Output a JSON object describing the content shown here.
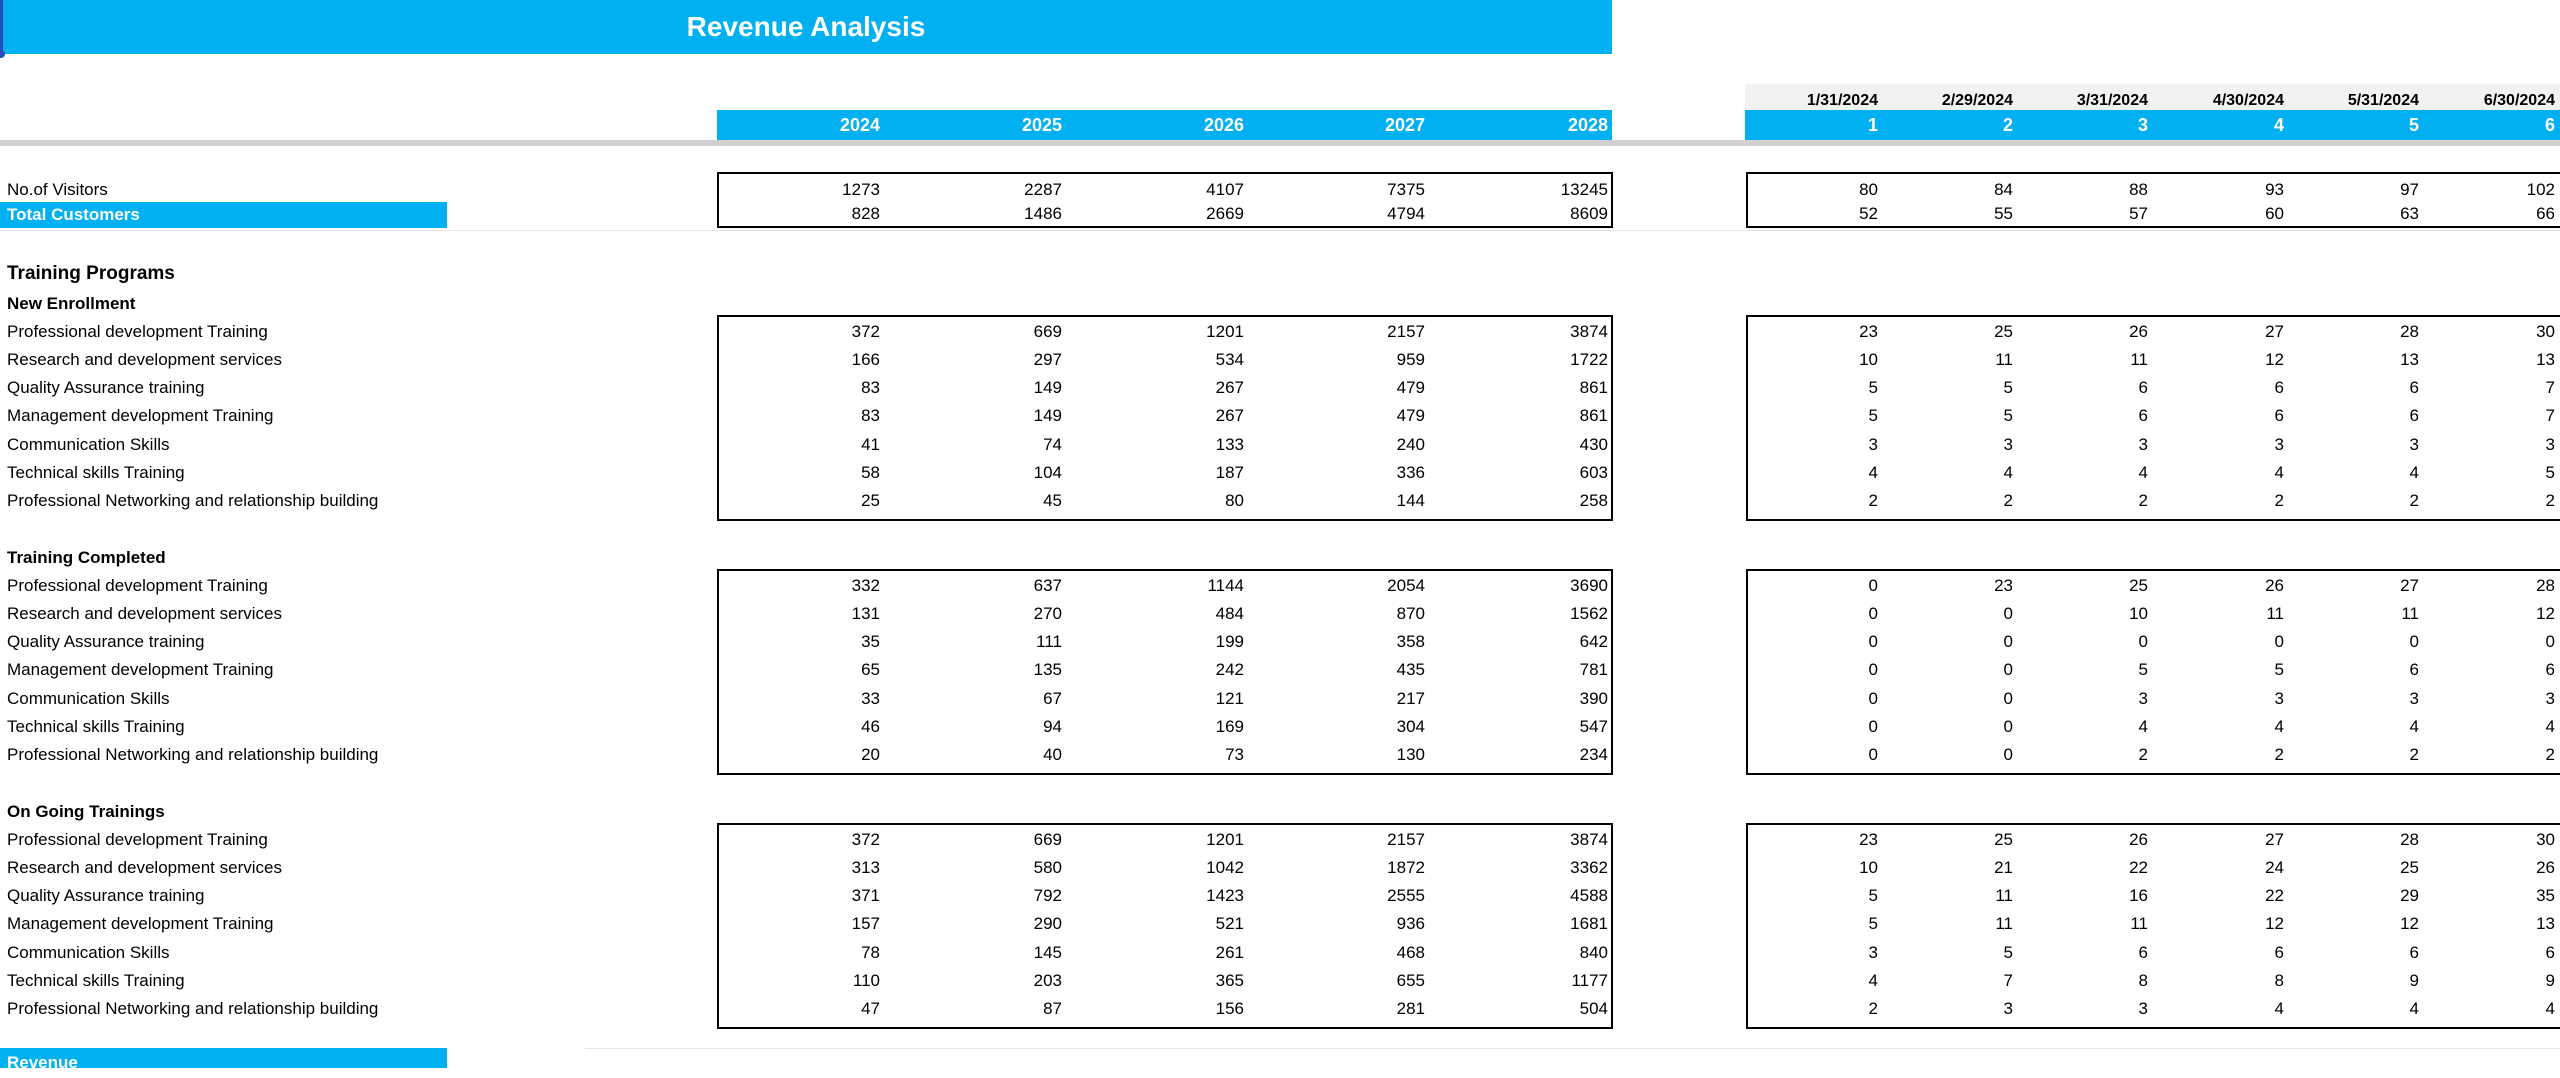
{
  "banner": {
    "title": "Revenue Analysis"
  },
  "years": [
    "2024",
    "2025",
    "2026",
    "2027",
    "2028"
  ],
  "months": {
    "dates": [
      "1/31/2024",
      "2/29/2024",
      "3/31/2024",
      "4/30/2024",
      "5/31/2024",
      "6/30/2024"
    ],
    "numbers": [
      "1",
      "2",
      "3",
      "4",
      "5",
      "6"
    ]
  },
  "summary": [
    {
      "label": "No.of Visitors",
      "highlight": false,
      "yearly": [
        "1273",
        "2287",
        "4107",
        "7375",
        "13245"
      ],
      "monthly": [
        "80",
        "84",
        "88",
        "93",
        "97",
        "102"
      ]
    },
    {
      "label": "Total Customers",
      "highlight": true,
      "yearly": [
        "828",
        "1486",
        "2669",
        "4794",
        "8609"
      ],
      "monthly": [
        "52",
        "55",
        "57",
        "60",
        "63",
        "66"
      ]
    }
  ],
  "section_title": "Training Programs",
  "groups": [
    {
      "title": "New Enrollment",
      "rows": [
        {
          "label": "Professional development Training",
          "yearly": [
            "372",
            "669",
            "1201",
            "2157",
            "3874"
          ],
          "monthly": [
            "23",
            "25",
            "26",
            "27",
            "28",
            "30"
          ]
        },
        {
          "label": "Research and development services",
          "yearly": [
            "166",
            "297",
            "534",
            "959",
            "1722"
          ],
          "monthly": [
            "10",
            "11",
            "11",
            "12",
            "13",
            "13"
          ]
        },
        {
          "label": "Quality Assurance training",
          "yearly": [
            "83",
            "149",
            "267",
            "479",
            "861"
          ],
          "monthly": [
            "5",
            "5",
            "6",
            "6",
            "6",
            "7"
          ]
        },
        {
          "label": "Management development Training",
          "yearly": [
            "83",
            "149",
            "267",
            "479",
            "861"
          ],
          "monthly": [
            "5",
            "5",
            "6",
            "6",
            "6",
            "7"
          ]
        },
        {
          "label": "Communication Skills",
          "yearly": [
            "41",
            "74",
            "133",
            "240",
            "430"
          ],
          "monthly": [
            "3",
            "3",
            "3",
            "3",
            "3",
            "3"
          ]
        },
        {
          "label": "Technical skills Training",
          "yearly": [
            "58",
            "104",
            "187",
            "336",
            "603"
          ],
          "monthly": [
            "4",
            "4",
            "4",
            "4",
            "4",
            "5"
          ]
        },
        {
          "label": "Professional Networking and relationship building",
          "yearly": [
            "25",
            "45",
            "80",
            "144",
            "258"
          ],
          "monthly": [
            "2",
            "2",
            "2",
            "2",
            "2",
            "2"
          ]
        }
      ]
    },
    {
      "title": "Training Completed",
      "rows": [
        {
          "label": "Professional development Training",
          "yearly": [
            "332",
            "637",
            "1144",
            "2054",
            "3690"
          ],
          "monthly": [
            "0",
            "23",
            "25",
            "26",
            "27",
            "28"
          ]
        },
        {
          "label": "Research and development services",
          "yearly": [
            "131",
            "270",
            "484",
            "870",
            "1562"
          ],
          "monthly": [
            "0",
            "0",
            "10",
            "11",
            "11",
            "12"
          ]
        },
        {
          "label": "Quality Assurance training",
          "yearly": [
            "35",
            "111",
            "199",
            "358",
            "642"
          ],
          "monthly": [
            "0",
            "0",
            "0",
            "0",
            "0",
            "0"
          ]
        },
        {
          "label": "Management development Training",
          "yearly": [
            "65",
            "135",
            "242",
            "435",
            "781"
          ],
          "monthly": [
            "0",
            "0",
            "5",
            "5",
            "6",
            "6"
          ]
        },
        {
          "label": "Communication Skills",
          "yearly": [
            "33",
            "67",
            "121",
            "217",
            "390"
          ],
          "monthly": [
            "0",
            "0",
            "3",
            "3",
            "3",
            "3"
          ]
        },
        {
          "label": "Technical skills Training",
          "yearly": [
            "46",
            "94",
            "169",
            "304",
            "547"
          ],
          "monthly": [
            "0",
            "0",
            "4",
            "4",
            "4",
            "4"
          ]
        },
        {
          "label": "Professional Networking and relationship building",
          "yearly": [
            "20",
            "40",
            "73",
            "130",
            "234"
          ],
          "monthly": [
            "0",
            "0",
            "2",
            "2",
            "2",
            "2"
          ]
        }
      ]
    },
    {
      "title": "On Going Trainings",
      "rows": [
        {
          "label": "Professional development Training",
          "yearly": [
            "372",
            "669",
            "1201",
            "2157",
            "3874"
          ],
          "monthly": [
            "23",
            "25",
            "26",
            "27",
            "28",
            "30"
          ]
        },
        {
          "label": "Research and development services",
          "yearly": [
            "313",
            "580",
            "1042",
            "1872",
            "3362"
          ],
          "monthly": [
            "10",
            "21",
            "22",
            "24",
            "25",
            "26"
          ]
        },
        {
          "label": "Quality Assurance training",
          "yearly": [
            "371",
            "792",
            "1423",
            "2555",
            "4588"
          ],
          "monthly": [
            "5",
            "11",
            "16",
            "22",
            "29",
            "35"
          ]
        },
        {
          "label": "Management development Training",
          "yearly": [
            "157",
            "290",
            "521",
            "936",
            "1681"
          ],
          "monthly": [
            "5",
            "11",
            "11",
            "12",
            "12",
            "13"
          ]
        },
        {
          "label": "Communication Skills",
          "yearly": [
            "78",
            "145",
            "261",
            "468",
            "840"
          ],
          "monthly": [
            "3",
            "5",
            "6",
            "6",
            "6",
            "6"
          ]
        },
        {
          "label": "Technical skills Training",
          "yearly": [
            "110",
            "203",
            "365",
            "655",
            "1177"
          ],
          "monthly": [
            "4",
            "7",
            "8",
            "8",
            "9",
            "9"
          ]
        },
        {
          "label": "Professional Networking and relationship building",
          "yearly": [
            "47",
            "87",
            "156",
            "281",
            "504"
          ],
          "monthly": [
            "2",
            "3",
            "3",
            "4",
            "4",
            "4"
          ]
        }
      ]
    }
  ],
  "footer_label": "Revenue",
  "colors": {
    "accent": "#00b0f0",
    "header_gray": "#f2f2f2",
    "separator": "#d0d0d0"
  }
}
